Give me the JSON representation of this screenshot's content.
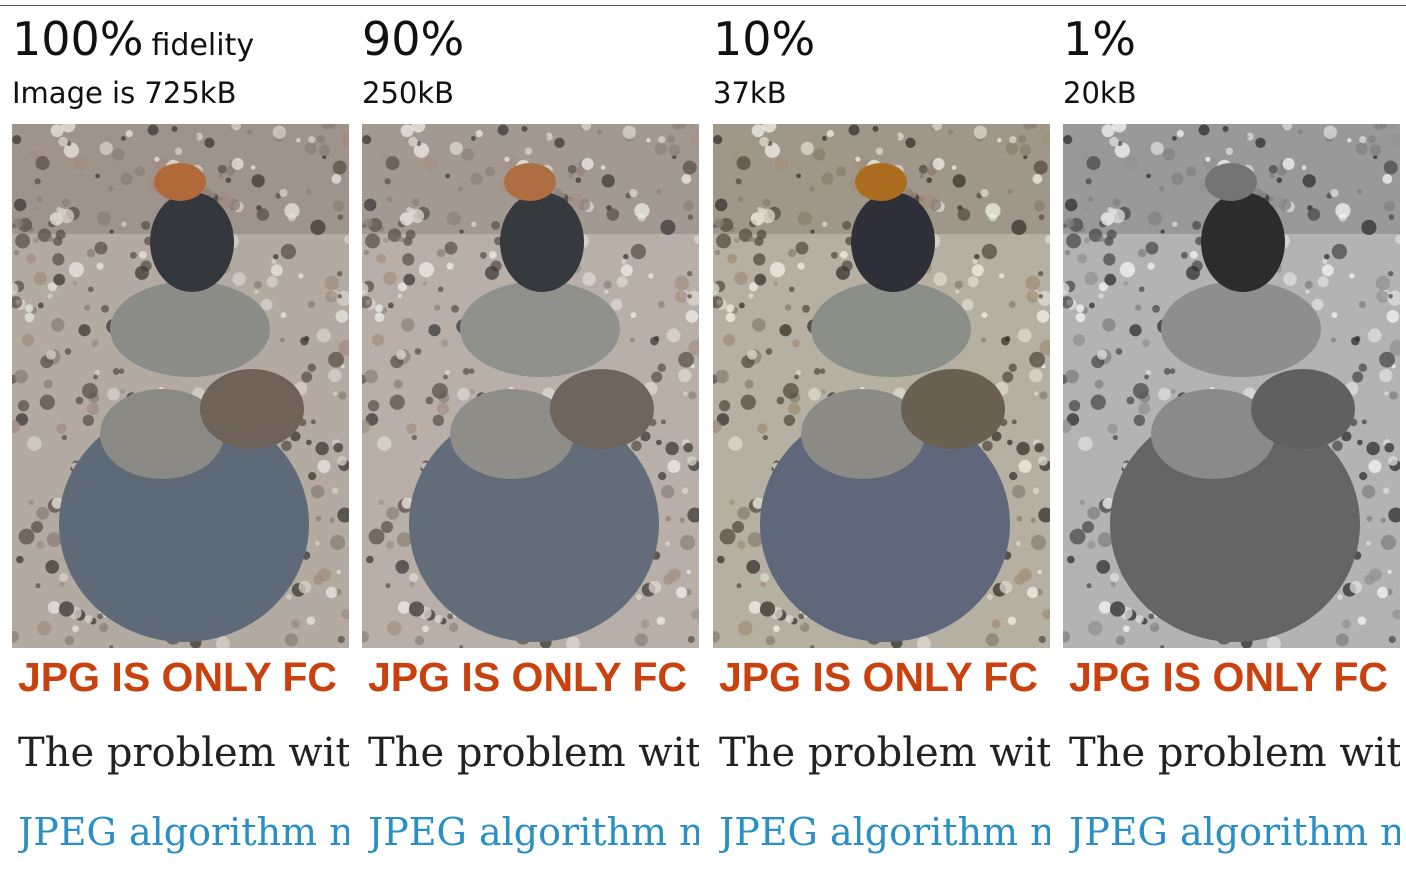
{
  "columns": [
    {
      "quality": "100%",
      "quality_note": "fidelity",
      "size": "Image is 725kB",
      "headline": "JPG IS ONLY FC",
      "body": "The problem wit",
      "link": "JPEG algorithm n"
    },
    {
      "quality": "90%",
      "size": "250kB",
      "headline": "JPG IS ONLY FC",
      "body": "The problem wit",
      "link": "JPEG algorithm n"
    },
    {
      "quality": "10%",
      "size": "37kB",
      "headline": "JPG IS ONLY FC",
      "body": "The problem wit",
      "link": "JPEG algorithm n"
    },
    {
      "quality": "1%",
      "size": "20kB",
      "headline": "JPG IS ONLY FC",
      "body": "The problem wit",
      "link": "JPEG algorithm n"
    }
  ]
}
